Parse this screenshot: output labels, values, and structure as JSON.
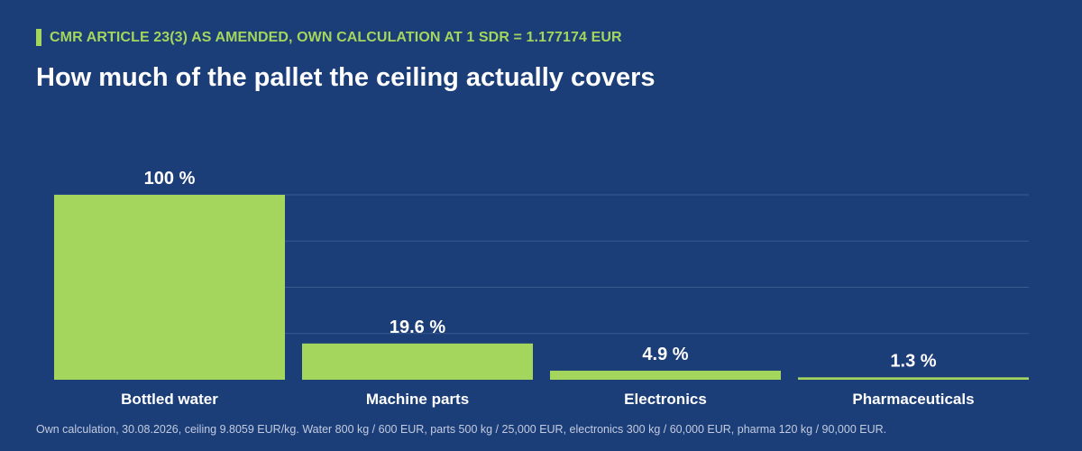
{
  "header": {
    "kicker": "CMR ARTICLE 23(3) AS AMENDED, OWN CALCULATION AT 1 SDR = 1.177174 EUR",
    "title": "How much of the pallet the ceiling actually covers"
  },
  "chart_data": {
    "type": "bar",
    "categories": [
      "Bottled water",
      "Machine parts",
      "Electronics",
      "Pharmaceuticals"
    ],
    "values": [
      100,
      19.6,
      4.9,
      1.3
    ],
    "value_labels": [
      "100 %",
      "19.6 %",
      "4.9 %",
      "1.3 %"
    ],
    "ylim": [
      0,
      100
    ],
    "grid": true,
    "bar_color": "#a4d65e"
  },
  "footnote": "Own calculation, 30.08.2026, ceiling 9.8059 EUR/kg. Water 800 kg / 600 EUR, parts 500 kg / 25,000 EUR, electronics 300 kg / 60,000 EUR, pharma 120 kg / 90,000 EUR.",
  "colors": {
    "background": "#1b3d78",
    "accent": "#a4d65e",
    "text": "#ffffff",
    "grid": "#3b5a90"
  }
}
